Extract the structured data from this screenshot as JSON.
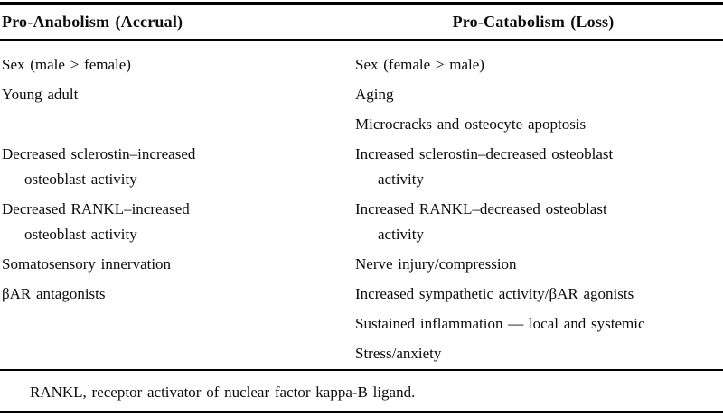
{
  "colors": {
    "background": "#ffffff",
    "text": "#0c0c0c",
    "rule": "#000000"
  },
  "table": {
    "headers": {
      "left": "Pro-Anabolism (Accrual)",
      "right": "Pro-Catabolism (Loss)"
    },
    "rows": [
      {
        "left": [
          "Sex (male > female)"
        ],
        "right": [
          "Sex (female > male)"
        ]
      },
      {
        "left": [
          "Young adult"
        ],
        "right": [
          "Aging"
        ]
      },
      {
        "left": [],
        "right": [
          "Microcracks and osteocyte apoptosis"
        ]
      },
      {
        "left": [
          "Decreased sclerostin–increased",
          "osteoblast activity"
        ],
        "right": [
          "Increased sclerostin–decreased osteoblast",
          "activity"
        ]
      },
      {
        "left": [
          "Decreased RANKL–increased",
          "osteoblast activity"
        ],
        "right": [
          "Increased RANKL–decreased osteoblast",
          "activity"
        ]
      },
      {
        "left": [
          "Somatosensory innervation"
        ],
        "right": [
          "Nerve injury/compression"
        ]
      },
      {
        "left": [
          "βAR antagonists"
        ],
        "right": [
          "Increased sympathetic activity/βAR agonists"
        ]
      },
      {
        "left": [],
        "right": [
          "Sustained inflammation — local and systemic"
        ]
      },
      {
        "left": [],
        "right": [
          "Stress/anxiety"
        ]
      }
    ],
    "footnote": "RANKL, receptor activator of nuclear factor kappa-B ligand."
  }
}
